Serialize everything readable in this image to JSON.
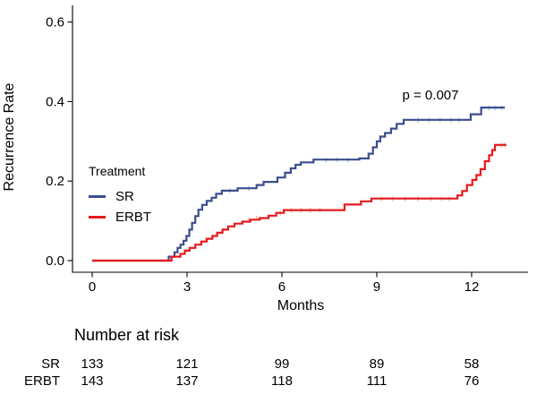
{
  "figure": {
    "y_axis_label": "Recurrence Rate",
    "x_axis_label": "Months",
    "p_value_annotation": "p = 0.007",
    "legend": {
      "title": "Treatment"
    }
  },
  "chart_data": {
    "type": "line",
    "subtype": "kaplan-meier-step",
    "title": "",
    "xlabel": "Months",
    "ylabel": "Recurrence Rate",
    "xlim": [
      0,
      13.5
    ],
    "ylim": [
      0,
      0.6
    ],
    "x_ticks": [
      0,
      3,
      6,
      9,
      12
    ],
    "y_ticks": [
      0.0,
      0.2,
      0.4,
      0.6
    ],
    "grid": false,
    "legend_position": "inside-left",
    "annotation": {
      "text": "p = 0.007",
      "x": 10.7,
      "y": 0.41
    },
    "axis_color": "#000000",
    "series": [
      {
        "name": "SR",
        "color": "#3A4E8E",
        "censor_color": "#C3CBE3",
        "end_x": 13.05,
        "steps": [
          [
            2.42,
            0.01
          ],
          [
            2.6,
            0.021
          ],
          [
            2.7,
            0.032
          ],
          [
            2.79,
            0.04
          ],
          [
            2.89,
            0.05
          ],
          [
            2.98,
            0.062
          ],
          [
            3.07,
            0.078
          ],
          [
            3.16,
            0.095
          ],
          [
            3.26,
            0.112
          ],
          [
            3.36,
            0.128
          ],
          [
            3.48,
            0.14
          ],
          [
            3.62,
            0.15
          ],
          [
            3.78,
            0.158
          ],
          [
            3.92,
            0.168
          ],
          [
            4.1,
            0.176
          ],
          [
            4.6,
            0.182
          ],
          [
            5.2,
            0.19
          ],
          [
            5.42,
            0.198
          ],
          [
            5.86,
            0.209
          ],
          [
            6.1,
            0.221
          ],
          [
            6.28,
            0.232
          ],
          [
            6.43,
            0.241
          ],
          [
            6.6,
            0.247
          ],
          [
            7.0,
            0.254
          ],
          [
            8.45,
            0.257
          ],
          [
            8.74,
            0.269
          ],
          [
            8.88,
            0.285
          ],
          [
            9.0,
            0.3
          ],
          [
            9.11,
            0.312
          ],
          [
            9.26,
            0.321
          ],
          [
            9.45,
            0.332
          ],
          [
            9.63,
            0.344
          ],
          [
            9.85,
            0.354
          ],
          [
            11.97,
            0.368
          ],
          [
            12.3,
            0.385
          ]
        ],
        "censor_marks": [
          [
            4.35,
            0.176
          ],
          [
            4.95,
            0.182
          ],
          [
            7.4,
            0.254
          ],
          [
            7.75,
            0.254
          ],
          [
            8.1,
            0.254
          ],
          [
            10.3,
            0.354
          ],
          [
            10.65,
            0.354
          ],
          [
            11.0,
            0.354
          ],
          [
            11.35,
            0.354
          ],
          [
            11.6,
            0.354
          ],
          [
            12.55,
            0.385
          ],
          [
            12.75,
            0.385
          ],
          [
            12.95,
            0.385
          ]
        ]
      },
      {
        "name": "ERBT",
        "color": "#E41A1C",
        "censor_color": "#F6BDB9",
        "end_x": 13.1,
        "steps": [
          [
            2.51,
            0.01
          ],
          [
            2.79,
            0.017
          ],
          [
            2.93,
            0.025
          ],
          [
            3.08,
            0.032
          ],
          [
            3.26,
            0.04
          ],
          [
            3.45,
            0.048
          ],
          [
            3.62,
            0.055
          ],
          [
            3.8,
            0.062
          ],
          [
            3.95,
            0.07
          ],
          [
            4.12,
            0.078
          ],
          [
            4.3,
            0.086
          ],
          [
            4.5,
            0.093
          ],
          [
            4.75,
            0.098
          ],
          [
            5.0,
            0.103
          ],
          [
            5.3,
            0.107
          ],
          [
            5.58,
            0.113
          ],
          [
            5.82,
            0.12
          ],
          [
            6.06,
            0.127
          ],
          [
            7.98,
            0.141
          ],
          [
            8.5,
            0.149
          ],
          [
            8.83,
            0.156
          ],
          [
            11.55,
            0.164
          ],
          [
            11.7,
            0.175
          ],
          [
            11.85,
            0.19
          ],
          [
            12.02,
            0.203
          ],
          [
            12.15,
            0.215
          ],
          [
            12.28,
            0.23
          ],
          [
            12.42,
            0.25
          ],
          [
            12.55,
            0.265
          ],
          [
            12.65,
            0.278
          ],
          [
            12.74,
            0.291
          ]
        ],
        "censor_marks": [
          [
            4.95,
            0.103
          ],
          [
            5.2,
            0.107
          ],
          [
            5.95,
            0.12
          ],
          [
            6.3,
            0.127
          ],
          [
            6.6,
            0.127
          ],
          [
            6.9,
            0.127
          ],
          [
            7.2,
            0.127
          ],
          [
            9.15,
            0.156
          ],
          [
            9.5,
            0.156
          ],
          [
            9.9,
            0.156
          ],
          [
            10.3,
            0.156
          ],
          [
            10.7,
            0.156
          ],
          [
            11.05,
            0.156
          ],
          [
            11.3,
            0.156
          ],
          [
            12.95,
            0.291
          ],
          [
            13.05,
            0.291
          ]
        ]
      }
    ]
  },
  "risk_table": {
    "title": "Number at risk",
    "time_points": [
      0,
      3,
      6,
      9,
      12
    ],
    "rows": [
      {
        "label": "SR",
        "values": [
          "133",
          "121",
          "99",
          "89",
          "58"
        ]
      },
      {
        "label": "ERBT",
        "values": [
          "143",
          "137",
          "118",
          "111",
          "76"
        ]
      }
    ]
  }
}
